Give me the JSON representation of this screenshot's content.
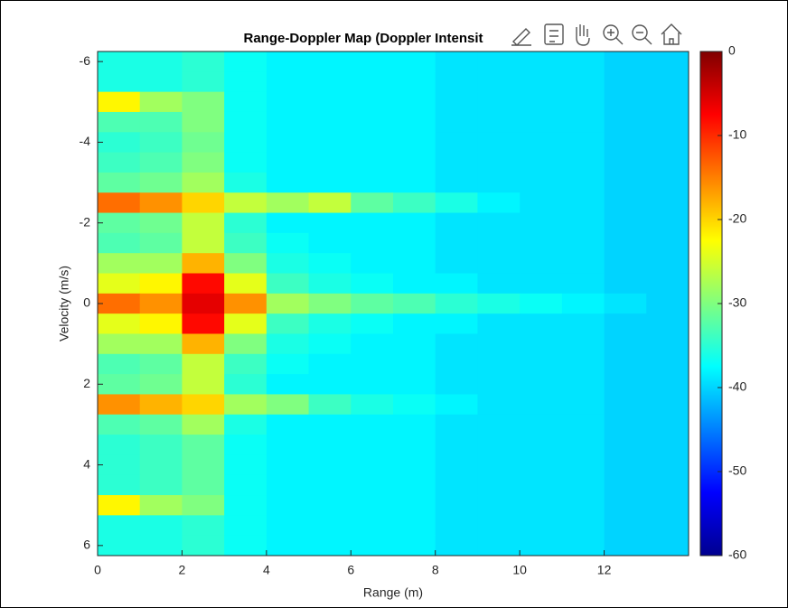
{
  "chart_data": {
    "type": "heatmap",
    "title": "Range-Doppler Map (Doppler Intensit",
    "x_label": "Range (m)",
    "y_label": "Velocity (m/s)",
    "xlim": [
      0,
      14
    ],
    "xticks": [
      0,
      2,
      4,
      6,
      8,
      10,
      12
    ],
    "ylim": [
      -6.25,
      6.25
    ],
    "yticks": [
      -6,
      -4,
      -2,
      0,
      2,
      4,
      6
    ],
    "y_reversed": true,
    "colormap": "jet",
    "clim": [
      -60,
      0
    ],
    "cticks": [
      0,
      -10,
      -20,
      -30,
      -40,
      -50,
      -60
    ],
    "x": [
      0.5,
      1.5,
      2.5,
      3.5,
      4.5,
      5.5,
      6.5,
      7.5,
      8.5,
      9.5,
      10.5,
      11.5,
      12.5,
      13.5
    ],
    "y": [
      -6,
      -5.5,
      -5,
      -4.5,
      -4,
      -3.5,
      -3,
      -2.5,
      -2,
      -1.5,
      -1,
      -0.5,
      0,
      0.5,
      1,
      1.5,
      2,
      2.5,
      3,
      3.5,
      4,
      4.5,
      5,
      5.5,
      6
    ],
    "z": [
      [
        -36,
        -36,
        -35,
        -37,
        -38,
        -38,
        -38,
        -38,
        -39,
        -39,
        -39,
        -39,
        -40,
        -40
      ],
      [
        -36,
        -36,
        -35,
        -37,
        -38,
        -38,
        -38,
        -38,
        -39,
        -39,
        -39,
        -39,
        -40,
        -40
      ],
      [
        -22,
        -28,
        -30,
        -37,
        -38,
        -38,
        -38,
        -38,
        -39,
        -39,
        -39,
        -39,
        -40,
        -40
      ],
      [
        -33,
        -33,
        -30,
        -37,
        -38,
        -38,
        -38,
        -38,
        -39,
        -39,
        -39,
        -39,
        -40,
        -40
      ],
      [
        -35,
        -34,
        -31,
        -37,
        -38,
        -38,
        -38,
        -38,
        -39,
        -39,
        -39,
        -39,
        -40,
        -40
      ],
      [
        -34,
        -33,
        -30,
        -37,
        -38,
        -38,
        -38,
        -38,
        -39,
        -39,
        -39,
        -39,
        -40,
        -40
      ],
      [
        -32,
        -31,
        -28,
        -36,
        -38,
        -38,
        -38,
        -38,
        -39,
        -39,
        -39,
        -39,
        -40,
        -40
      ],
      [
        -14,
        -16,
        -20,
        -26,
        -28,
        -26,
        -32,
        -34,
        -36,
        -38,
        -39,
        -39,
        -40,
        -40
      ],
      [
        -32,
        -31,
        -26,
        -35,
        -38,
        -38,
        -38,
        -38,
        -39,
        -39,
        -39,
        -39,
        -40,
        -40
      ],
      [
        -33,
        -32,
        -26,
        -34,
        -37,
        -38,
        -38,
        -38,
        -39,
        -39,
        -39,
        -39,
        -40,
        -40
      ],
      [
        -28,
        -28,
        -18,
        -30,
        -36,
        -37,
        -38,
        -38,
        -39,
        -39,
        -39,
        -39,
        -40,
        -40
      ],
      [
        -24,
        -22,
        -8,
        -24,
        -34,
        -36,
        -37,
        -38,
        -38,
        -39,
        -39,
        -39,
        -40,
        -40
      ],
      [
        -14,
        -16,
        -6,
        -16,
        -28,
        -30,
        -32,
        -33,
        -35,
        -36,
        -37,
        -38,
        -39,
        -40
      ],
      [
        -24,
        -22,
        -8,
        -24,
        -34,
        -36,
        -37,
        -38,
        -38,
        -39,
        -39,
        -39,
        -40,
        -40
      ],
      [
        -28,
        -28,
        -18,
        -30,
        -36,
        -37,
        -38,
        -38,
        -39,
        -39,
        -39,
        -39,
        -40,
        -40
      ],
      [
        -33,
        -32,
        -26,
        -34,
        -37,
        -38,
        -38,
        -38,
        -39,
        -39,
        -39,
        -39,
        -40,
        -40
      ],
      [
        -32,
        -31,
        -26,
        -35,
        -38,
        -38,
        -38,
        -38,
        -39,
        -39,
        -39,
        -39,
        -40,
        -40
      ],
      [
        -16,
        -18,
        -20,
        -28,
        -30,
        -34,
        -36,
        -37,
        -38,
        -39,
        -39,
        -39,
        -40,
        -40
      ],
      [
        -33,
        -32,
        -28,
        -36,
        -38,
        -38,
        -38,
        -38,
        -39,
        -39,
        -39,
        -39,
        -40,
        -40
      ],
      [
        -35,
        -34,
        -32,
        -37,
        -38,
        -38,
        -38,
        -38,
        -39,
        -39,
        -39,
        -39,
        -40,
        -40
      ],
      [
        -35,
        -34,
        -32,
        -37,
        -38,
        -38,
        -38,
        -38,
        -39,
        -39,
        -39,
        -39,
        -40,
        -40
      ],
      [
        -35,
        -34,
        -32,
        -37,
        -38,
        -38,
        -38,
        -38,
        -39,
        -39,
        -39,
        -39,
        -40,
        -40
      ],
      [
        -22,
        -28,
        -30,
        -37,
        -38,
        -38,
        -38,
        -38,
        -39,
        -39,
        -39,
        -39,
        -40,
        -40
      ],
      [
        -36,
        -36,
        -35,
        -37,
        -38,
        -38,
        -38,
        -38,
        -39,
        -39,
        -39,
        -39,
        -40,
        -40
      ],
      [
        -36,
        -36,
        -35,
        -37,
        -38,
        -38,
        -38,
        -38,
        -39,
        -39,
        -39,
        -39,
        -40,
        -40
      ]
    ]
  }
}
